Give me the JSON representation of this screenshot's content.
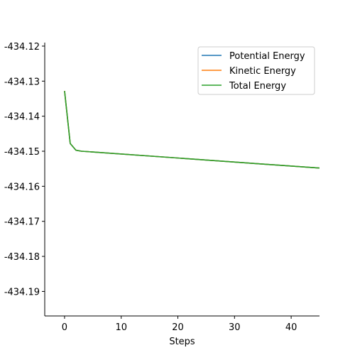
{
  "chart_data": {
    "type": "line",
    "title": "",
    "xlabel": "Steps",
    "ylabel": "",
    "xlim": [
      -3.5,
      45
    ],
    "ylim": [
      -434.197,
      -434.119
    ],
    "x_ticks": [
      0,
      10,
      20,
      30,
      40
    ],
    "y_ticks": [
      -434.12,
      -434.13,
      -434.14,
      -434.15,
      -434.16,
      -434.17,
      -434.18,
      -434.19
    ],
    "y_tick_labels": [
      "-434.12",
      "-434.13",
      "-434.14",
      "-434.15",
      "-434.16",
      "-434.17",
      "-434.18",
      "-434.19"
    ],
    "legend_position": "top-right",
    "grid": false,
    "series": [
      {
        "name": "Potential Energy",
        "color": "#1f77b4",
        "x": [
          0,
          1,
          2,
          3,
          4,
          45
        ],
        "y": [
          -434.1328,
          -434.1478,
          -434.1497,
          -434.15,
          -434.1501,
          -434.1548
        ]
      },
      {
        "name": "Kinetic Energy",
        "color": "#ff7f0e",
        "x": [
          0,
          1,
          2,
          3,
          4,
          45
        ],
        "y": [
          -434.1328,
          -434.1478,
          -434.1497,
          -434.15,
          -434.1501,
          -434.1548
        ]
      },
      {
        "name": "Total Energy",
        "color": "#2ca02c",
        "x": [
          0,
          1,
          2,
          3,
          4,
          45
        ],
        "y": [
          -434.1328,
          -434.1478,
          -434.1497,
          -434.15,
          -434.1501,
          -434.1548
        ]
      }
    ]
  }
}
